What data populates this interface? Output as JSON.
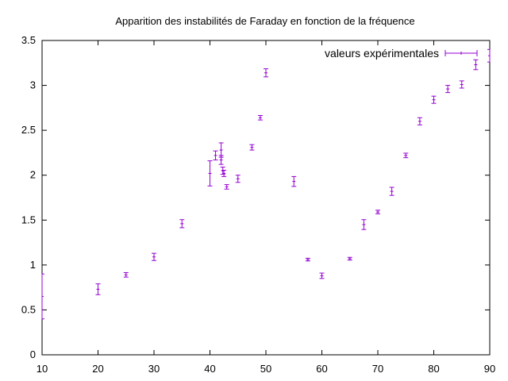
{
  "chart_data": {
    "type": "scatter",
    "title": "Apparition des instabilités de Faraday en fonction de la fréquence",
    "xlabel": "",
    "ylabel": "",
    "xlim": [
      10,
      90
    ],
    "ylim": [
      0,
      3.5
    ],
    "xticks": [
      "10",
      "20",
      "30",
      "40",
      "50",
      "60",
      "70",
      "80",
      "90"
    ],
    "yticks": [
      "0",
      "0.5",
      "1",
      "1.5",
      "2",
      "2.5",
      "3",
      "3.5"
    ],
    "grid": false,
    "legend_position": "top-right",
    "series": [
      {
        "name": "valeurs expérimentales",
        "color": "#9400d3",
        "marker": "errorbar",
        "points": [
          {
            "x": 10,
            "y": 0.65,
            "err": 0.25
          },
          {
            "x": 20,
            "y": 0.73,
            "err": 0.06
          },
          {
            "x": 25,
            "y": 0.89,
            "err": 0.025
          },
          {
            "x": 30,
            "y": 1.09,
            "err": 0.04
          },
          {
            "x": 35,
            "y": 1.46,
            "err": 0.045
          },
          {
            "x": 40,
            "y": 2.02,
            "err": 0.14
          },
          {
            "x": 41,
            "y": 2.22,
            "err": 0.05
          },
          {
            "x": 42,
            "y": 2.28,
            "err": 0.08
          },
          {
            "x": 42,
            "y": 2.17,
            "err": 0.05
          },
          {
            "x": 42.3,
            "y": 2.05,
            "err": 0.04
          },
          {
            "x": 42.5,
            "y": 2.02,
            "err": 0.035
          },
          {
            "x": 43,
            "y": 1.87,
            "err": 0.025
          },
          {
            "x": 45,
            "y": 1.96,
            "err": 0.04
          },
          {
            "x": 47.5,
            "y": 2.31,
            "err": 0.03
          },
          {
            "x": 49,
            "y": 2.64,
            "err": 0.025
          },
          {
            "x": 50,
            "y": 3.14,
            "err": 0.045
          },
          {
            "x": 55,
            "y": 1.93,
            "err": 0.055
          },
          {
            "x": 57.5,
            "y": 1.06,
            "err": 0.015
          },
          {
            "x": 60,
            "y": 0.88,
            "err": 0.03
          },
          {
            "x": 65,
            "y": 1.07,
            "err": 0.015
          },
          {
            "x": 67.5,
            "y": 1.45,
            "err": 0.055
          },
          {
            "x": 70,
            "y": 1.59,
            "err": 0.02
          },
          {
            "x": 72.5,
            "y": 1.82,
            "err": 0.045
          },
          {
            "x": 75,
            "y": 2.22,
            "err": 0.025
          },
          {
            "x": 77.5,
            "y": 2.6,
            "err": 0.04
          },
          {
            "x": 80,
            "y": 2.84,
            "err": 0.04
          },
          {
            "x": 82.5,
            "y": 2.96,
            "err": 0.04
          },
          {
            "x": 85,
            "y": 3.01,
            "err": 0.04
          },
          {
            "x": 87.5,
            "y": 3.23,
            "err": 0.055
          },
          {
            "x": 90,
            "y": 3.33,
            "err": 0.07
          }
        ]
      }
    ]
  }
}
